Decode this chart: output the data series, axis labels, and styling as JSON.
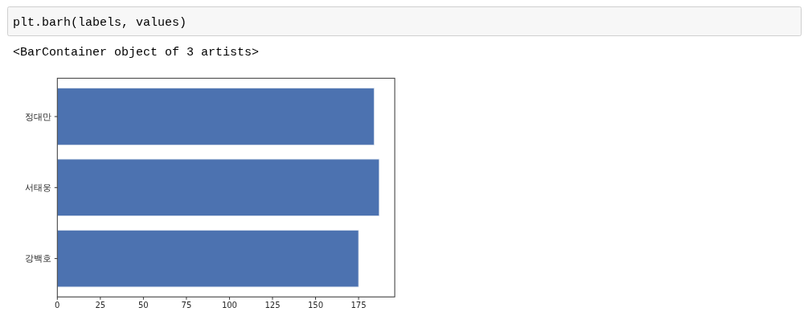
{
  "chart_data": {
    "type": "bar",
    "orientation": "horizontal",
    "annotations": [
      "plt.barh(labels, values)",
      "<BarContainer object of 3 artists>"
    ],
    "categories": [
      "정대만",
      "서태웅",
      "강백호"
    ],
    "values": [
      184,
      187,
      175
    ],
    "color": "#4c72b0",
    "xlim": [
      0,
      196
    ],
    "xticks": [
      0,
      25,
      50,
      75,
      100,
      125,
      150,
      175
    ]
  }
}
